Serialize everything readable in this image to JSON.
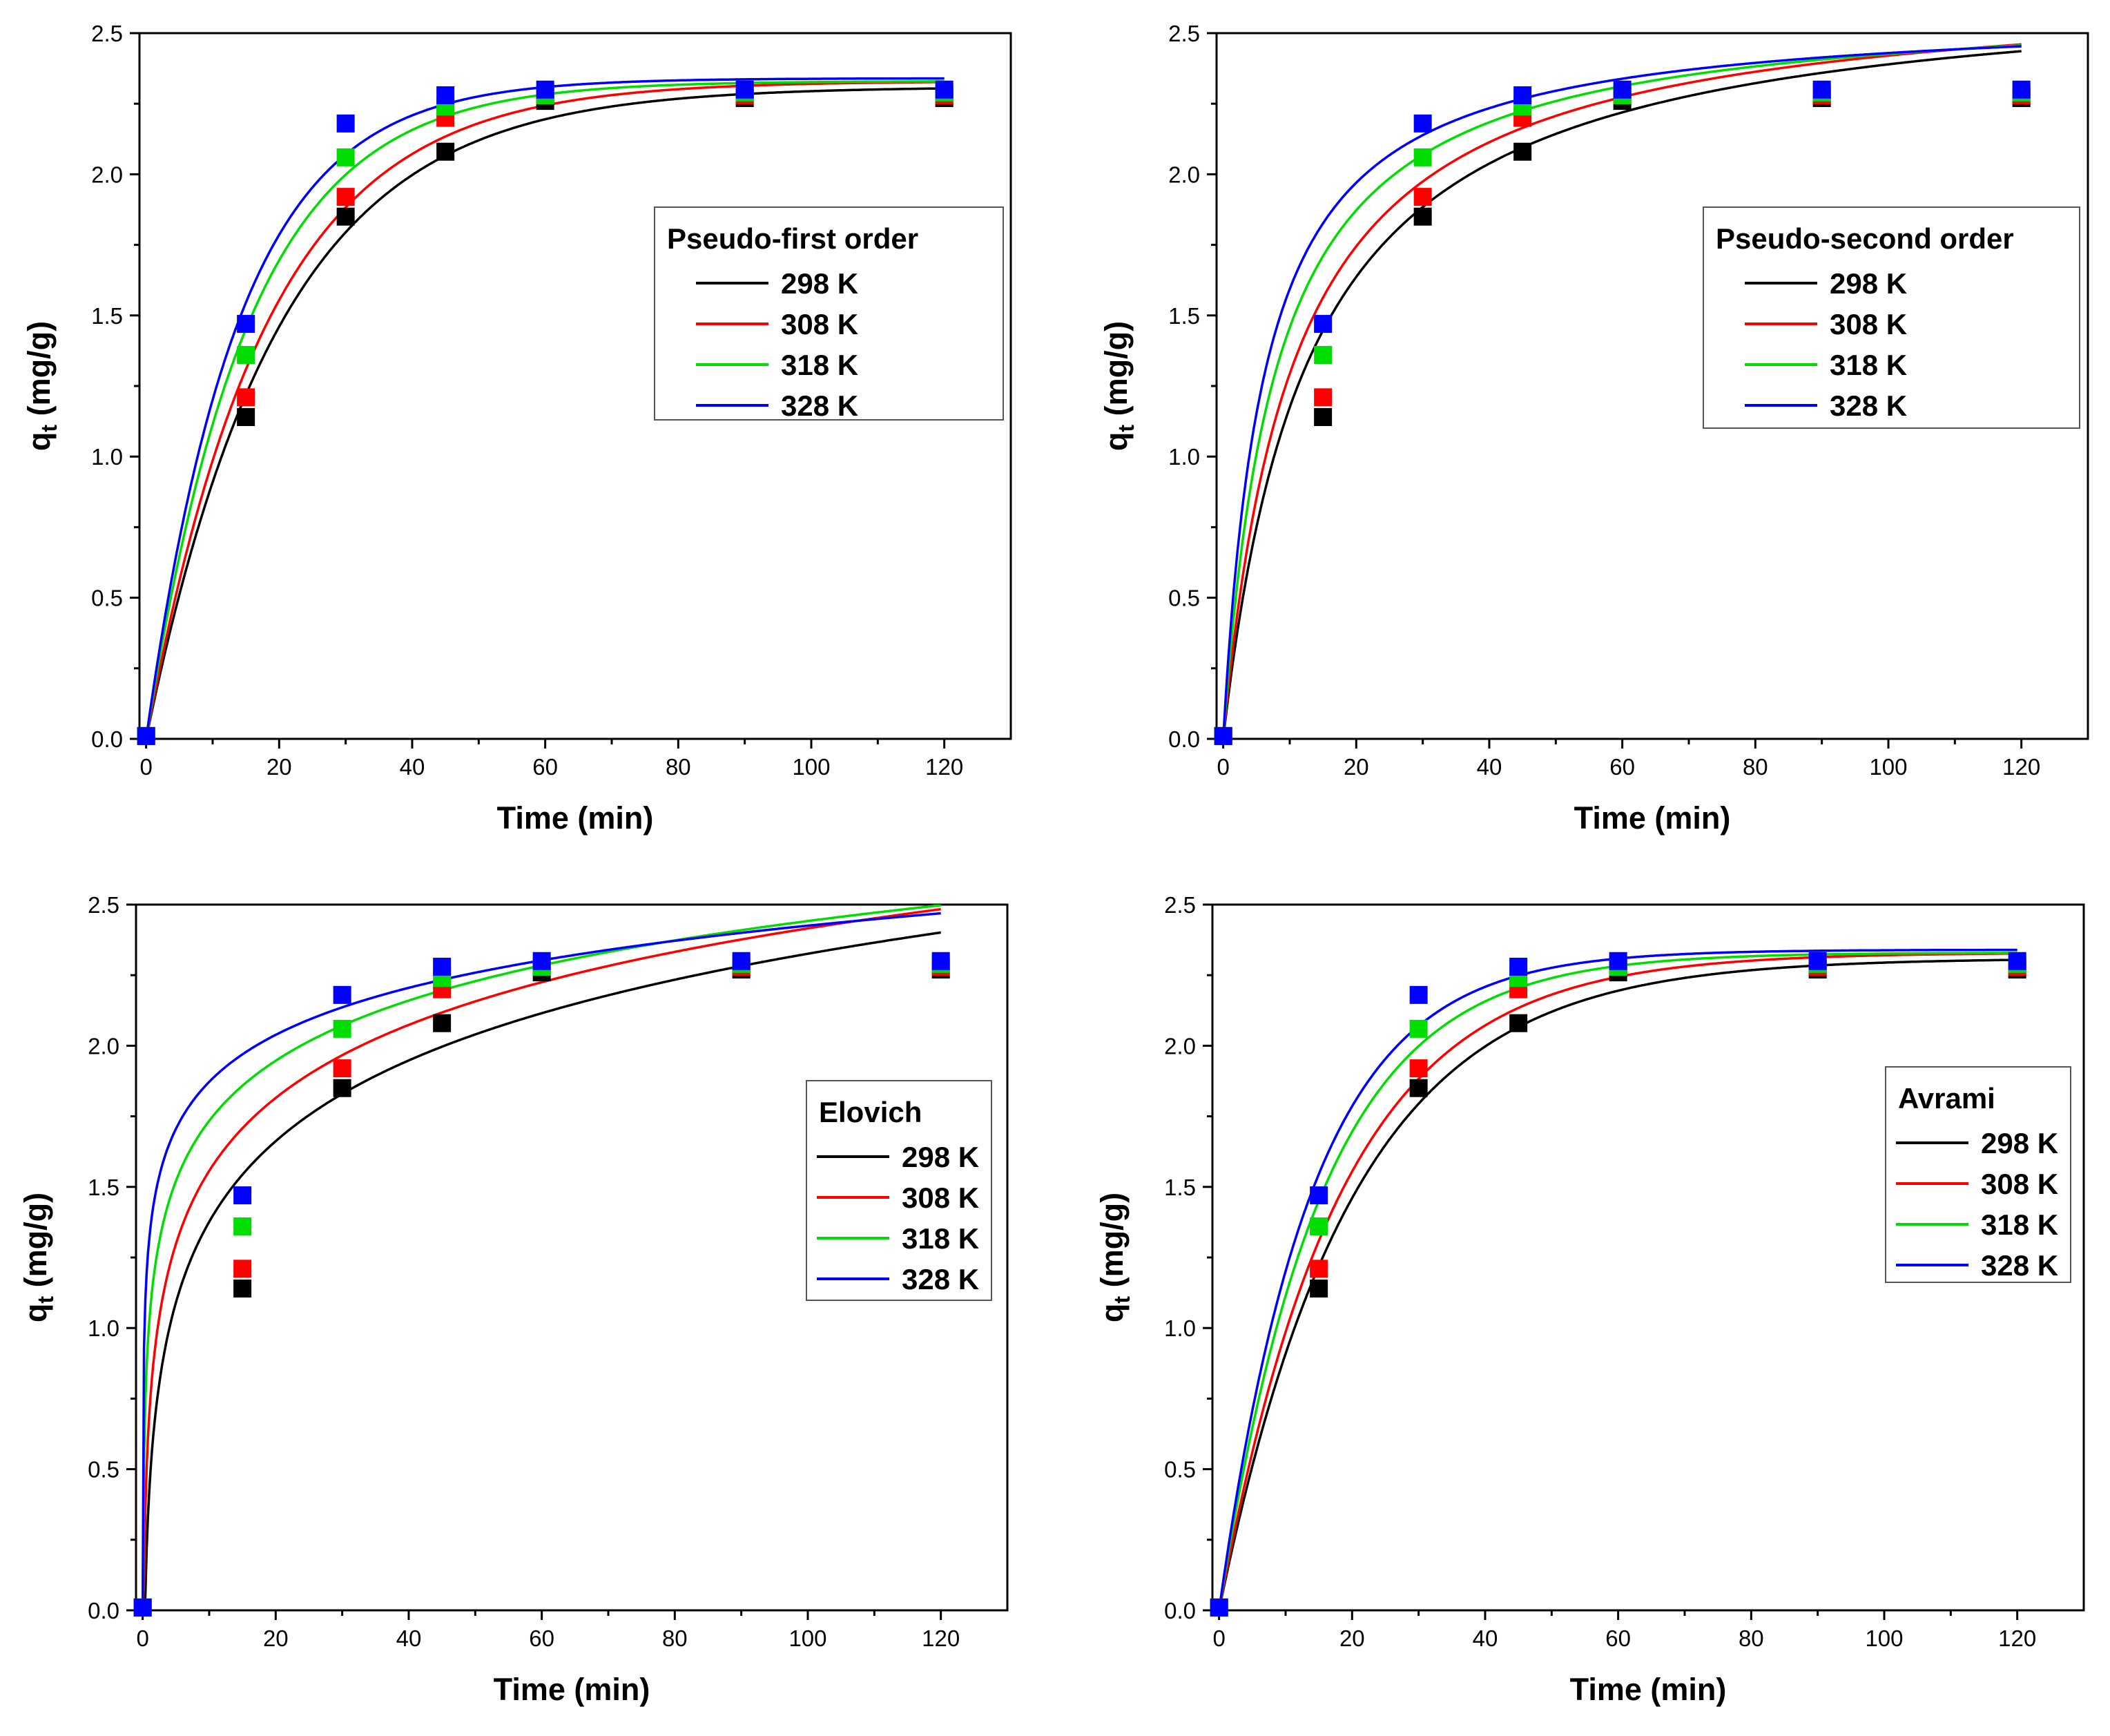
{
  "figure": {
    "x_ticks": [
      0,
      20,
      40,
      60,
      80,
      100,
      120
    ],
    "y_ticks": [
      0.0,
      0.5,
      1.0,
      1.5,
      2.0,
      2.5
    ],
    "xlabel": "Time (min)",
    "ylabel_main": "q",
    "ylabel_sub": "t",
    "ylabel_unit": " (mg/g)"
  },
  "colors": {
    "298 K": "#000000",
    "308 K": "#ff0000",
    "318 K": "#00dd00",
    "328 K": "#0000ff"
  },
  "chart_data": [
    {
      "type": "scatter",
      "title": "Pseudo-first order",
      "xlabel": "Time (min)",
      "ylabel": "qt (mg/g)",
      "xlim": [
        -1,
        130
      ],
      "ylim": [
        0,
        2.5
      ],
      "legend_position": "right-middle",
      "series": [
        {
          "name": "298 K",
          "points": [
            [
              0,
              0.01
            ],
            [
              15,
              1.14
            ],
            [
              30,
              1.85
            ],
            [
              45,
              2.08
            ],
            [
              60,
              2.26
            ],
            [
              90,
              2.27
            ],
            [
              120,
              2.27
            ]
          ],
          "fit": "pfo",
          "params": {
            "qe": 2.31,
            "k": 0.05
          }
        },
        {
          "name": "308 K",
          "points": [
            [
              0,
              0.01
            ],
            [
              15,
              1.21
            ],
            [
              30,
              1.92
            ],
            [
              45,
              2.2
            ],
            [
              60,
              2.28
            ],
            [
              90,
              2.28
            ],
            [
              120,
              2.28
            ]
          ],
          "fit": "pfo",
          "params": {
            "qe": 2.33,
            "k": 0.055
          }
        },
        {
          "name": "318 K",
          "points": [
            [
              0,
              0.01
            ],
            [
              15,
              1.36
            ],
            [
              30,
              2.06
            ],
            [
              45,
              2.24
            ],
            [
              60,
              2.28
            ],
            [
              90,
              2.29
            ],
            [
              120,
              2.29
            ]
          ],
          "fit": "pfo",
          "params": {
            "qe": 2.33,
            "k": 0.065
          }
        },
        {
          "name": "328 K",
          "points": [
            [
              0,
              0.01
            ],
            [
              15,
              1.47
            ],
            [
              30,
              2.18
            ],
            [
              45,
              2.28
            ],
            [
              60,
              2.3
            ],
            [
              90,
              2.3
            ],
            [
              120,
              2.3
            ]
          ],
          "fit": "pfo",
          "params": {
            "qe": 2.34,
            "k": 0.072
          }
        }
      ]
    },
    {
      "type": "scatter",
      "title": "Pseudo-second order",
      "xlabel": "Time (min)",
      "ylabel": "qt (mg/g)",
      "xlim": [
        -1,
        130
      ],
      "ylim": [
        0,
        2.5
      ],
      "legend_position": "right-upper",
      "series": [
        {
          "name": "298 K",
          "points": [
            [
              0,
              0.01
            ],
            [
              15,
              1.14
            ],
            [
              30,
              1.85
            ],
            [
              45,
              2.08
            ],
            [
              60,
              2.26
            ],
            [
              90,
              2.27
            ],
            [
              120,
              2.27
            ]
          ],
          "fit": "pso",
          "params": {
            "qe": 2.7,
            "k": 0.0285
          }
        },
        {
          "name": "308 K",
          "points": [
            [
              0,
              0.01
            ],
            [
              15,
              1.21
            ],
            [
              30,
              1.92
            ],
            [
              45,
              2.2
            ],
            [
              60,
              2.28
            ],
            [
              90,
              2.28
            ],
            [
              120,
              2.28
            ]
          ],
          "fit": "pso",
          "params": {
            "qe": 2.68,
            "k": 0.0348
          }
        },
        {
          "name": "318 K",
          "points": [
            [
              0,
              0.01
            ],
            [
              15,
              1.36
            ],
            [
              30,
              2.06
            ],
            [
              45,
              2.24
            ],
            [
              60,
              2.28
            ],
            [
              90,
              2.29
            ],
            [
              120,
              2.29
            ]
          ],
          "fit": "pso",
          "params": {
            "qe": 2.62,
            "k": 0.0478
          }
        },
        {
          "name": "328 K",
          "points": [
            [
              0,
              0.01
            ],
            [
              15,
              1.47
            ],
            [
              30,
              2.18
            ],
            [
              45,
              2.28
            ],
            [
              60,
              2.3
            ],
            [
              90,
              2.3
            ],
            [
              120,
              2.3
            ]
          ],
          "fit": "pso",
          "params": {
            "qe": 2.58,
            "k": 0.0626
          }
        }
      ]
    },
    {
      "type": "scatter",
      "title": "Elovich",
      "xlabel": "Time (min)",
      "ylabel": "qt (mg/g)",
      "xlim": [
        -1,
        130
      ],
      "ylim": [
        0,
        2.5
      ],
      "legend_position": "right-middle",
      "series": [
        {
          "name": "298 K",
          "points": [
            [
              0,
              0.01
            ],
            [
              15,
              1.14
            ],
            [
              30,
              1.85
            ],
            [
              45,
              2.08
            ],
            [
              60,
              2.26
            ],
            [
              90,
              2.27
            ],
            [
              120,
              2.27
            ]
          ],
          "fit": "elovich",
          "params": {
            "a": 0.4263,
            "b": 0.4125
          }
        },
        {
          "name": "308 K",
          "points": [
            [
              0,
              0.01
            ],
            [
              15,
              1.21
            ],
            [
              30,
              1.92
            ],
            [
              45,
              2.2
            ],
            [
              60,
              2.28
            ],
            [
              90,
              2.28
            ],
            [
              120,
              2.28
            ]
          ],
          "fit": "elovich",
          "params": {
            "a": 0.6971,
            "b": 0.3732
          }
        },
        {
          "name": "318 K",
          "points": [
            [
              0,
              0.01
            ],
            [
              15,
              1.36
            ],
            [
              30,
              2.06
            ],
            [
              45,
              2.24
            ],
            [
              60,
              2.28
            ],
            [
              90,
              2.29
            ],
            [
              120,
              2.29
            ]
          ],
          "fit": "elovich",
          "params": {
            "a": 1.0257,
            "b": 0.3075
          }
        },
        {
          "name": "328 K",
          "points": [
            [
              0,
              0.01
            ],
            [
              15,
              1.47
            ],
            [
              30,
              2.18
            ],
            [
              45,
              2.28
            ],
            [
              60,
              2.3
            ],
            [
              90,
              2.3
            ],
            [
              120,
              2.3
            ]
          ],
          "fit": "elovich",
          "params": {
            "a": 1.3187,
            "b": 0.2403
          }
        }
      ]
    },
    {
      "type": "scatter",
      "title": "Avrami",
      "xlabel": "Time (min)",
      "ylabel": "qt (mg/g)",
      "xlim": [
        -1,
        130
      ],
      "ylim": [
        0,
        2.5
      ],
      "legend_position": "right-middle",
      "series": [
        {
          "name": "298 K",
          "points": [
            [
              0,
              0.01
            ],
            [
              15,
              1.14
            ],
            [
              30,
              1.85
            ],
            [
              45,
              2.08
            ],
            [
              60,
              2.26
            ],
            [
              90,
              2.27
            ],
            [
              120,
              2.27
            ]
          ],
          "fit": "pfo",
          "params": {
            "qe": 2.31,
            "k": 0.05
          }
        },
        {
          "name": "308 K",
          "points": [
            [
              0,
              0.01
            ],
            [
              15,
              1.21
            ],
            [
              30,
              1.92
            ],
            [
              45,
              2.2
            ],
            [
              60,
              2.28
            ],
            [
              90,
              2.28
            ],
            [
              120,
              2.28
            ]
          ],
          "fit": "pfo",
          "params": {
            "qe": 2.33,
            "k": 0.055
          }
        },
        {
          "name": "318 K",
          "points": [
            [
              0,
              0.01
            ],
            [
              15,
              1.36
            ],
            [
              30,
              2.06
            ],
            [
              45,
              2.24
            ],
            [
              60,
              2.28
            ],
            [
              90,
              2.29
            ],
            [
              120,
              2.29
            ]
          ],
          "fit": "pfo",
          "params": {
            "qe": 2.33,
            "k": 0.065
          }
        },
        {
          "name": "328 K",
          "points": [
            [
              0,
              0.01
            ],
            [
              15,
              1.47
            ],
            [
              30,
              2.18
            ],
            [
              45,
              2.28
            ],
            [
              60,
              2.3
            ],
            [
              90,
              2.3
            ],
            [
              120,
              2.3
            ]
          ],
          "fit": "pfo",
          "params": {
            "qe": 2.34,
            "k": 0.072
          }
        }
      ]
    }
  ]
}
